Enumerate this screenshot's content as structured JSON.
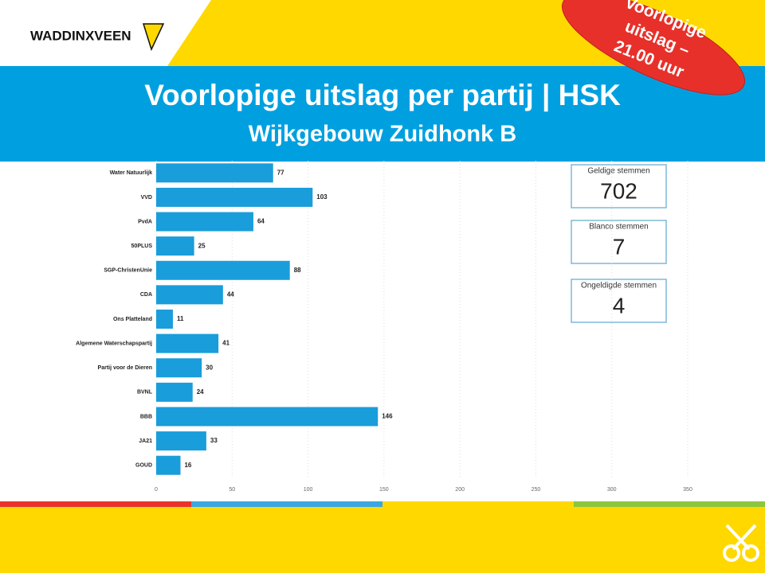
{
  "header": {
    "logo": "WADDINXVEEN",
    "title": "Voorlopige uitslag per partij | HSK",
    "subtitle": "Wijkgebouw Zuidhonk B",
    "badge": [
      "Voorlopige",
      "uitslag –",
      "21.00 uur"
    ]
  },
  "cards": [
    {
      "label": "Geldige stemmen",
      "value": "702"
    },
    {
      "label": "Blanco stemmen",
      "value": "7"
    },
    {
      "label": "Ongeldigde stemmen",
      "value": "4"
    }
  ],
  "chart_data": {
    "type": "barh",
    "categories": [
      "Water Natuurlijk",
      "VVD",
      "PvdA",
      "50PLUS",
      "SGP-ChristenUnie",
      "CDA",
      "Ons Platteland",
      "Algemene Waterschapspartij",
      "Partij voor de Dieren",
      "BVNL",
      "BBB",
      "JA21",
      "GOUD"
    ],
    "values": [
      77,
      103,
      64,
      25,
      88,
      44,
      11,
      41,
      30,
      24,
      146,
      33,
      16
    ],
    "color": "#1a9ddb",
    "xlim": [
      0,
      350
    ],
    "xticks": [
      0,
      50,
      100,
      150,
      200,
      250,
      300,
      350
    ],
    "grid": true
  }
}
